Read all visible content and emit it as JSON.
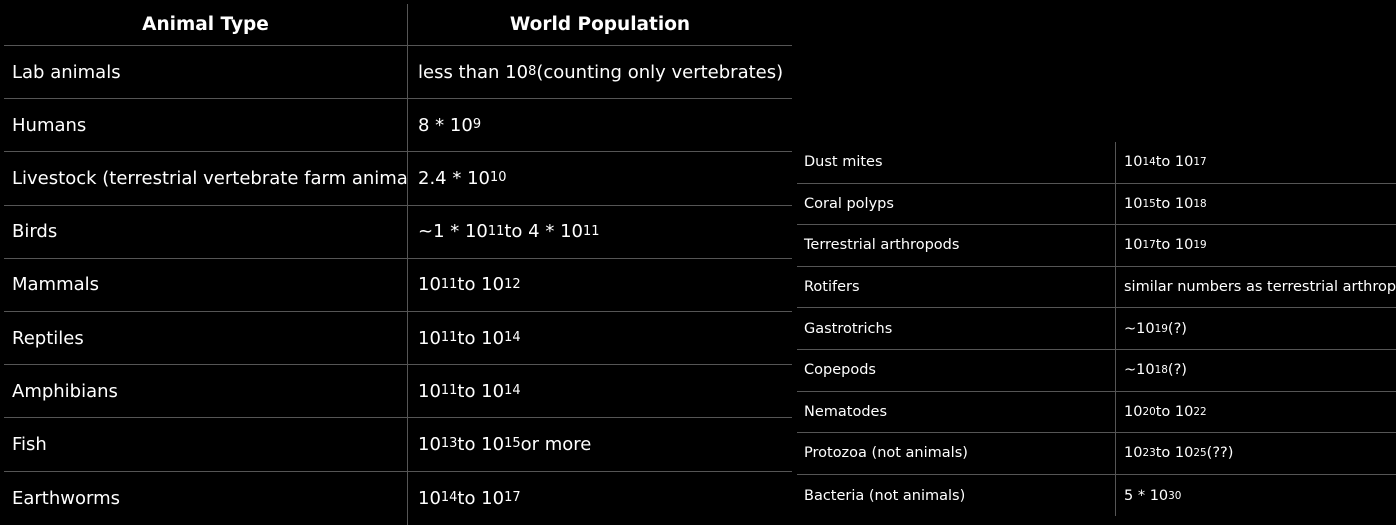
{
  "left_table": {
    "headers": [
      "Animal Type",
      "World Population"
    ],
    "rows": [
      {
        "animal": "Lab animals",
        "population": "less than 10^8 (counting only vertebrates)"
      },
      {
        "animal": "Humans",
        "population": "8 * 10^9"
      },
      {
        "animal": "Livestock (terrestrial vertebrate farm animals)",
        "population": "2.4 * 10^10"
      },
      {
        "animal": "Birds",
        "population": "~1 * 10^11 to 4 * 10^11"
      },
      {
        "animal": "Mammals",
        "population": "10^11 to 10^12"
      },
      {
        "animal": "Reptiles",
        "population": "10^11 to 10^14"
      },
      {
        "animal": "Amphibians",
        "population": "10^11 to 10^14"
      },
      {
        "animal": "Fish",
        "population": "10^13 to 10^15 or more"
      },
      {
        "animal": "Earthworms",
        "population": "10^14 to 10^17"
      }
    ]
  },
  "right_table": {
    "rows": [
      {
        "animal": "Dust mites",
        "population": "10^14 to 10^17"
      },
      {
        "animal": "Coral polyps",
        "population": "10^15 to 10^18"
      },
      {
        "animal": "Terrestrial arthropods",
        "population": "10^17 to 10^19"
      },
      {
        "animal": "Rotifers",
        "population": "similar numbers as terrestrial arthropods"
      },
      {
        "animal": "Gastrotrichs",
        "population": "~10^19 (?)"
      },
      {
        "animal": "Copepods",
        "population": "~10^18 (?)"
      },
      {
        "animal": "Nematodes",
        "population": "10^20 to 10^22"
      },
      {
        "animal": "Protozoa (not animals)",
        "population": "10^23 to 10^25 (??)"
      },
      {
        "animal": "Bacteria (not animals)",
        "population": "5 * 10^30"
      }
    ]
  }
}
